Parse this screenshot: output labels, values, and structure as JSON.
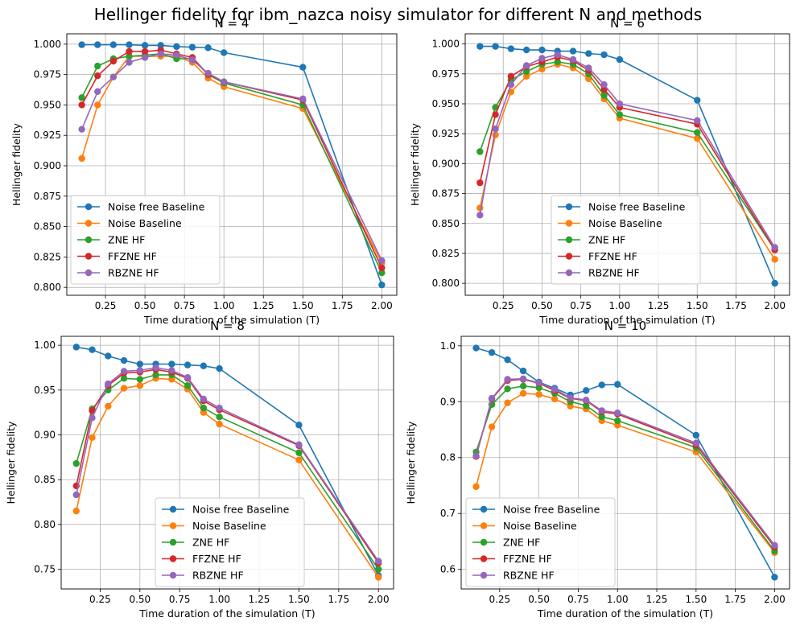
{
  "figure": {
    "title": "Hellinger fidelity for ibm_nazca noisy simulator for different N and methods"
  },
  "colors": {
    "Noise free Baseline": "#1f77b4",
    "Noise Baseline": "#ff7f0e",
    "ZNE HF": "#2ca02c",
    "FFZNE HF": "#d62728",
    "RBZNE HF": "#9467bd"
  },
  "chart_data": [
    {
      "type": "line",
      "title": "N = 4",
      "xlabel": "Time duration of the simulation (T)",
      "ylabel": "Hellinger fidelity",
      "xlim": [
        0.005,
        2.095
      ],
      "ylim": [
        0.7935,
        1.0085
      ],
      "xticks": [
        "0.25",
        "0.50",
        "0.75",
        "1.00",
        "1.25",
        "1.50",
        "1.75",
        "2.00"
      ],
      "yticks": [
        "0.800",
        "0.825",
        "0.850",
        "0.875",
        "0.900",
        "0.925",
        "0.950",
        "0.975",
        "1.000"
      ],
      "grid": true,
      "legend_position": "lower-left",
      "x": [
        0.1,
        0.2,
        0.3,
        0.4,
        0.5,
        0.6,
        0.7,
        0.8,
        0.9,
        1.0,
        1.5,
        2.0
      ],
      "series": [
        {
          "name": "Noise free Baseline",
          "values": [
            0.9995,
            0.9995,
            0.9995,
            0.9995,
            0.999,
            0.999,
            0.998,
            0.9975,
            0.997,
            0.993,
            0.981,
            0.802
          ]
        },
        {
          "name": "Noise Baseline",
          "values": [
            0.906,
            0.95,
            0.973,
            0.99,
            0.99,
            0.99,
            0.99,
            0.985,
            0.972,
            0.965,
            0.947,
            0.82
          ]
        },
        {
          "name": "ZNE HF",
          "values": [
            0.956,
            0.982,
            0.988,
            0.99,
            0.991,
            0.992,
            0.988,
            0.988,
            0.975,
            0.968,
            0.95,
            0.812
          ]
        },
        {
          "name": "FFZNE HF",
          "values": [
            0.95,
            0.974,
            0.986,
            0.994,
            0.994,
            0.995,
            0.992,
            0.989,
            0.975,
            0.969,
            0.954,
            0.816
          ]
        },
        {
          "name": "RBZNE HF",
          "values": [
            0.93,
            0.961,
            0.973,
            0.985,
            0.989,
            0.992,
            0.991,
            0.987,
            0.976,
            0.969,
            0.955,
            0.822
          ]
        }
      ]
    },
    {
      "type": "line",
      "title": "N = 6",
      "xlabel": "Time duration of the simulation (T)",
      "ylabel": "Hellinger fidelity",
      "xlim": [
        0.005,
        2.095
      ],
      "ylim": [
        0.79,
        1.0085
      ],
      "xticks": [
        "0.25",
        "0.50",
        "0.75",
        "1.00",
        "1.25",
        "1.50",
        "1.75",
        "2.00"
      ],
      "yticks": [
        "0.800",
        "0.825",
        "0.850",
        "0.875",
        "0.900",
        "0.925",
        "0.950",
        "0.975",
        "1.000"
      ],
      "grid": true,
      "legend_position": "lower-center",
      "x": [
        0.1,
        0.2,
        0.3,
        0.4,
        0.5,
        0.6,
        0.7,
        0.8,
        0.9,
        1.0,
        1.5,
        2.0
      ],
      "series": [
        {
          "name": "Noise free Baseline",
          "values": [
            0.998,
            0.998,
            0.996,
            0.995,
            0.995,
            0.994,
            0.994,
            0.992,
            0.991,
            0.987,
            0.953,
            0.8
          ]
        },
        {
          "name": "Noise Baseline",
          "values": [
            0.863,
            0.924,
            0.96,
            0.973,
            0.979,
            0.983,
            0.98,
            0.971,
            0.954,
            0.938,
            0.921,
            0.82
          ]
        },
        {
          "name": "ZNE HF",
          "values": [
            0.91,
            0.947,
            0.97,
            0.977,
            0.983,
            0.985,
            0.983,
            0.975,
            0.957,
            0.941,
            0.926,
            0.828
          ]
        },
        {
          "name": "FFZNE HF",
          "values": [
            0.884,
            0.941,
            0.973,
            0.981,
            0.985,
            0.989,
            0.986,
            0.978,
            0.962,
            0.947,
            0.933,
            0.828
          ]
        },
        {
          "name": "RBZNE HF",
          "values": [
            0.857,
            0.929,
            0.966,
            0.982,
            0.988,
            0.991,
            0.987,
            0.98,
            0.966,
            0.95,
            0.936,
            0.83
          ]
        }
      ]
    },
    {
      "type": "line",
      "title": "N = 8",
      "xlabel": "Time duration of the simulation (T)",
      "ylabel": "Hellinger fidelity",
      "xlim": [
        0.005,
        2.095
      ],
      "ylim": [
        0.728,
        1.01
      ],
      "xticks": [
        "0.25",
        "0.50",
        "0.75",
        "1.00",
        "1.25",
        "1.50",
        "1.75",
        "2.00"
      ],
      "yticks": [
        "0.75",
        "0.80",
        "0.85",
        "0.90",
        "0.95",
        "1.00"
      ],
      "grid": true,
      "legend_position": "lower-center",
      "x": [
        0.1,
        0.2,
        0.3,
        0.4,
        0.5,
        0.6,
        0.7,
        0.8,
        0.9,
        1.0,
        1.5,
        2.0
      ],
      "series": [
        {
          "name": "Noise free Baseline",
          "values": [
            0.998,
            0.995,
            0.988,
            0.983,
            0.979,
            0.979,
            0.979,
            0.978,
            0.977,
            0.974,
            0.911,
            0.743
          ]
        },
        {
          "name": "Noise Baseline",
          "values": [
            0.815,
            0.897,
            0.932,
            0.952,
            0.955,
            0.963,
            0.962,
            0.951,
            0.925,
            0.912,
            0.872,
            0.741
          ]
        },
        {
          "name": "ZNE HF",
          "values": [
            0.868,
            0.929,
            0.95,
            0.963,
            0.962,
            0.967,
            0.967,
            0.955,
            0.93,
            0.92,
            0.88,
            0.75
          ]
        },
        {
          "name": "FFZNE HF",
          "values": [
            0.843,
            0.927,
            0.955,
            0.969,
            0.97,
            0.973,
            0.97,
            0.963,
            0.938,
            0.928,
            0.888,
            0.757
          ]
        },
        {
          "name": "RBZNE HF",
          "values": [
            0.833,
            0.919,
            0.957,
            0.971,
            0.972,
            0.975,
            0.972,
            0.964,
            0.94,
            0.93,
            0.889,
            0.759
          ]
        }
      ]
    },
    {
      "type": "line",
      "title": "N = 10",
      "xlabel": "Time duration of the simulation (T)",
      "ylabel": "Hellinger fidelity",
      "xlim": [
        0.005,
        2.095
      ],
      "ylim": [
        0.565,
        1.017
      ],
      "xticks": [
        "0.25",
        "0.50",
        "0.75",
        "1.00",
        "1.25",
        "1.50",
        "1.75",
        "2.00"
      ],
      "yticks": [
        "0.6",
        "0.7",
        "0.8",
        "0.9",
        "1.0"
      ],
      "grid": true,
      "legend_position": "lower-left",
      "x": [
        0.1,
        0.2,
        0.3,
        0.4,
        0.5,
        0.6,
        0.7,
        0.8,
        0.9,
        1.0,
        1.5,
        2.0
      ],
      "series": [
        {
          "name": "Noise free Baseline",
          "values": [
            0.996,
            0.988,
            0.975,
            0.955,
            0.935,
            0.924,
            0.912,
            0.92,
            0.93,
            0.931,
            0.84,
            0.586
          ]
        },
        {
          "name": "Noise Baseline",
          "values": [
            0.748,
            0.855,
            0.898,
            0.915,
            0.913,
            0.905,
            0.892,
            0.887,
            0.866,
            0.858,
            0.81,
            0.63
          ]
        },
        {
          "name": "ZNE HF",
          "values": [
            0.81,
            0.895,
            0.923,
            0.928,
            0.925,
            0.915,
            0.9,
            0.893,
            0.873,
            0.866,
            0.818,
            0.633
          ]
        },
        {
          "name": "FFZNE HF",
          "values": [
            0.802,
            0.905,
            0.938,
            0.94,
            0.933,
            0.92,
            0.906,
            0.902,
            0.882,
            0.878,
            0.823,
            0.64
          ]
        },
        {
          "name": "RBZNE HF",
          "values": [
            0.803,
            0.906,
            0.94,
            0.941,
            0.934,
            0.922,
            0.907,
            0.903,
            0.884,
            0.88,
            0.826,
            0.643
          ]
        }
      ]
    }
  ]
}
